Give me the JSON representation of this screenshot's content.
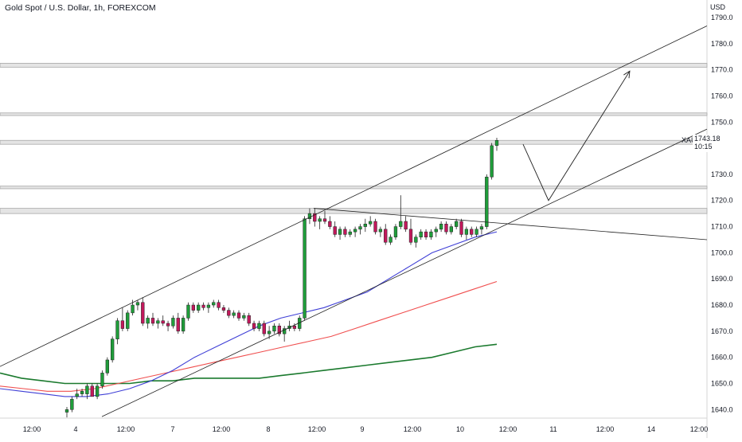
{
  "header": {
    "title": "Gold Spot / U.S. Dollar, 1h, FOREXCOM"
  },
  "price_tag": {
    "price": "1743.18",
    "countdown": "10:15"
  },
  "chart_data": {
    "type": "candlestick",
    "title": "Gold Spot / U.S. Dollar, 1h, FOREXCOM",
    "ylabel": "USD",
    "ylim": [
      1634,
      1794
    ],
    "y_ticks": [
      1640,
      1650,
      1660,
      1670,
      1680,
      1690,
      1700,
      1710,
      1720,
      1730,
      1740,
      1750,
      1760,
      1770,
      1780,
      1790
    ],
    "x_tick_labels": [
      "12:00",
      "4",
      "12:00",
      "7",
      "12:00",
      "8",
      "12:00",
      "9",
      "12:00",
      "10",
      "12:00",
      "11",
      "12:00",
      "14",
      "12:00"
    ],
    "symbol_label": "XAUUSD",
    "last_price": 1743.18,
    "colors": {
      "up": "#26a69a",
      "up_fill": "#1f9d3a",
      "down": "#c2185b",
      "ma_fast": "#3f3fd6",
      "ma_mid": "#f04e4e",
      "ma_slow": "#1b7a2e",
      "zone": "#cfcfcf"
    },
    "candles": [
      [
        1639,
        1641,
        1637,
        1640
      ],
      [
        1640,
        1645,
        1639,
        1644
      ],
      [
        1645,
        1648,
        1644,
        1646
      ],
      [
        1646,
        1648,
        1645,
        1647
      ],
      [
        1646,
        1650,
        1644,
        1649
      ],
      [
        1649,
        1650,
        1645,
        1645
      ],
      [
        1645,
        1650,
        1644,
        1649
      ],
      [
        1649,
        1655,
        1648,
        1654
      ],
      [
        1654,
        1660,
        1653,
        1659
      ],
      [
        1659,
        1668,
        1658,
        1667
      ],
      [
        1667,
        1675,
        1665,
        1674
      ],
      [
        1674,
        1679,
        1670,
        1671
      ],
      [
        1671,
        1678,
        1670,
        1677
      ],
      [
        1677,
        1682,
        1676,
        1680
      ],
      [
        1680,
        1682,
        1678,
        1681
      ],
      [
        1681,
        1683,
        1672,
        1673
      ],
      [
        1673,
        1676,
        1671,
        1675
      ],
      [
        1675,
        1677,
        1672,
        1673
      ],
      [
        1673,
        1675,
        1671,
        1674
      ],
      [
        1674,
        1676,
        1672,
        1673
      ],
      [
        1673,
        1674,
        1670,
        1672
      ],
      [
        1672,
        1676,
        1671,
        1675
      ],
      [
        1675,
        1677,
        1669,
        1670
      ],
      [
        1670,
        1676,
        1669,
        1675
      ],
      [
        1675,
        1681,
        1674,
        1680
      ],
      [
        1680,
        1681,
        1677,
        1678
      ],
      [
        1678,
        1681,
        1677,
        1680
      ],
      [
        1680,
        1681,
        1678,
        1679
      ],
      [
        1679,
        1681,
        1677,
        1680
      ],
      [
        1680,
        1682,
        1679,
        1681
      ],
      [
        1681,
        1682,
        1678,
        1679
      ],
      [
        1679,
        1680,
        1677,
        1678
      ],
      [
        1678,
        1679,
        1675,
        1676
      ],
      [
        1676,
        1678,
        1675,
        1677
      ],
      [
        1677,
        1678,
        1674,
        1675
      ],
      [
        1675,
        1677,
        1674,
        1676
      ],
      [
        1676,
        1677,
        1672,
        1673
      ],
      [
        1673,
        1674,
        1670,
        1671
      ],
      [
        1671,
        1674,
        1670,
        1673
      ],
      [
        1673,
        1674,
        1668,
        1669
      ],
      [
        1669,
        1672,
        1667,
        1670
      ],
      [
        1670,
        1673,
        1669,
        1672
      ],
      [
        1672,
        1673,
        1668,
        1669
      ],
      [
        1669,
        1672,
        1666,
        1671
      ],
      [
        1671,
        1674,
        1670,
        1672
      ],
      [
        1672,
        1673,
        1670,
        1671
      ],
      [
        1671,
        1676,
        1670,
        1675
      ],
      [
        1675,
        1714,
        1674,
        1713
      ],
      [
        1713,
        1717,
        1711,
        1715
      ],
      [
        1715,
        1717,
        1710,
        1712
      ],
      [
        1712,
        1714,
        1709,
        1713
      ],
      [
        1713,
        1716,
        1711,
        1712
      ],
      [
        1712,
        1714,
        1709,
        1710
      ],
      [
        1710,
        1712,
        1706,
        1707
      ],
      [
        1707,
        1710,
        1705,
        1709
      ],
      [
        1709,
        1710,
        1706,
        1707
      ],
      [
        1707,
        1709,
        1706,
        1708
      ],
      [
        1708,
        1710,
        1706,
        1709
      ],
      [
        1709,
        1711,
        1707,
        1710
      ],
      [
        1710,
        1713,
        1708,
        1711
      ],
      [
        1711,
        1714,
        1710,
        1712
      ],
      [
        1712,
        1713,
        1707,
        1708
      ],
      [
        1708,
        1710,
        1706,
        1709
      ],
      [
        1709,
        1711,
        1703,
        1704
      ],
      [
        1704,
        1707,
        1703,
        1706
      ],
      [
        1706,
        1711,
        1705,
        1710
      ],
      [
        1710,
        1722,
        1709,
        1712
      ],
      [
        1712,
        1714,
        1708,
        1709
      ],
      [
        1709,
        1713,
        1703,
        1704
      ],
      [
        1704,
        1707,
        1702,
        1706
      ],
      [
        1706,
        1709,
        1705,
        1708
      ],
      [
        1708,
        1709,
        1705,
        1706
      ],
      [
        1706,
        1709,
        1705,
        1708
      ],
      [
        1708,
        1710,
        1706,
        1709
      ],
      [
        1709,
        1712,
        1708,
        1711
      ],
      [
        1711,
        1712,
        1707,
        1708
      ],
      [
        1708,
        1711,
        1707,
        1710
      ],
      [
        1710,
        1713,
        1709,
        1712
      ],
      [
        1712,
        1713,
        1706,
        1707
      ],
      [
        1707,
        1710,
        1705,
        1709
      ],
      [
        1709,
        1710,
        1706,
        1707
      ],
      [
        1707,
        1710,
        1706,
        1709
      ],
      [
        1709,
        1711,
        1707,
        1710
      ],
      [
        1710,
        1730,
        1709,
        1729
      ],
      [
        1729,
        1742,
        1728,
        1741
      ],
      [
        1741,
        1744,
        1739,
        1743
      ]
    ],
    "ma_fast": [
      1648,
      1647,
      1646,
      1645,
      1645,
      1646,
      1648,
      1651,
      1655,
      1660,
      1664,
      1668,
      1672,
      1675,
      1677,
      1679,
      1682,
      1685,
      1690,
      1695,
      1700,
      1703,
      1706,
      1708
    ],
    "ma_mid": [
      1649,
      1648,
      1647,
      1647,
      1648,
      1650,
      1652,
      1654,
      1656,
      1658,
      1660,
      1662,
      1664,
      1666,
      1668,
      1671,
      1674,
      1677,
      1680,
      1683,
      1686,
      1689
    ],
    "ma_slow": [
      1654,
      1652,
      1651,
      1650,
      1650,
      1650,
      1650,
      1651,
      1651,
      1652,
      1652,
      1652,
      1652,
      1653,
      1654,
      1655,
      1656,
      1657,
      1658,
      1659,
      1660,
      1662,
      1664,
      1665
    ],
    "zones": [
      [
        1771,
        1772.5
      ],
      [
        1752.5,
        1753.5
      ],
      [
        1741.5,
        1743
      ],
      [
        1724.5,
        1725.5
      ],
      [
        1715,
        1717
      ]
    ],
    "trendlines": [
      {
        "from": [
          0,
          1656.5
        ],
        "to": [
          888,
          1786.8
        ]
      },
      {
        "from": [
          128,
          1637.3
        ],
        "to": [
          888,
          1747.3
        ]
      },
      {
        "from": [
          394,
          1717
        ],
        "to": [
          888,
          1705
        ]
      }
    ],
    "projection": [
      [
        657,
        1741.5
      ],
      [
        689,
        1720
      ],
      [
        791,
        1769.5
      ]
    ]
  }
}
